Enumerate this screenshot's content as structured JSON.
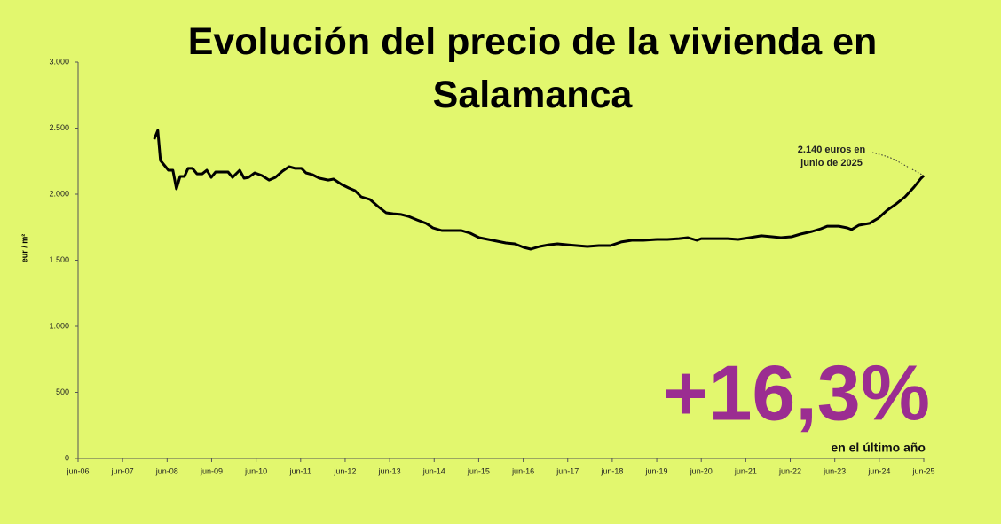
{
  "chart_data": {
    "type": "line",
    "title": "Evolución del precio de la vivienda en Salamanca",
    "y_label": "eur / m²",
    "annotation": [
      "2.140  euros en",
      "junio de 2025"
    ],
    "highlight": "+16,3%",
    "highlight_caption": "en el último año",
    "color": "#000000",
    "highlight_color": "#9b2d91",
    "background": "#e2f76e",
    "x": [
      2008.21,
      2008.29,
      2008.35,
      2008.53,
      2008.63,
      2008.71,
      2008.79,
      2008.89,
      2008.97,
      2009.07,
      2009.17,
      2009.29,
      2009.39,
      2009.49,
      2009.59,
      2009.87,
      2009.97,
      2010.13,
      2010.23,
      2010.33,
      2010.47,
      2010.63,
      2010.79,
      2010.93,
      2011.09,
      2011.24,
      2011.38,
      2011.52,
      2011.62,
      2011.76,
      2011.92,
      2012.12,
      2012.24,
      2012.42,
      2012.58,
      2012.72,
      2012.86,
      2013.06,
      2013.24,
      2013.42,
      2013.58,
      2013.76,
      2013.92,
      2014.12,
      2014.32,
      2014.47,
      2014.67,
      2014.91,
      2015.11,
      2015.31,
      2015.51,
      2015.71,
      2015.91,
      2016.11,
      2016.31,
      2016.51,
      2016.67,
      2016.87,
      2017.07,
      2017.27,
      2017.5,
      2017.7,
      2017.94,
      2018.2,
      2018.46,
      2018.7,
      2018.94,
      2019.2,
      2019.5,
      2019.74,
      2020.0,
      2020.2,
      2020.4,
      2020.5,
      2020.79,
      2021.09,
      2021.33,
      2021.59,
      2021.85,
      2022.09,
      2022.29,
      2022.53,
      2022.73,
      2022.99,
      2023.19,
      2023.33,
      2023.59,
      2023.78,
      2023.88,
      2024.04,
      2024.28,
      2024.48,
      2024.68,
      2024.88,
      2025.08,
      2025.28,
      2025.44,
      2025.5
    ],
    "values": [
      2416,
      2483,
      2255,
      2181,
      2181,
      2040,
      2134,
      2134,
      2195,
      2195,
      2154,
      2154,
      2181,
      2127,
      2168,
      2168,
      2127,
      2181,
      2121,
      2127,
      2161,
      2141,
      2107,
      2127,
      2174,
      2208,
      2195,
      2195,
      2161,
      2148,
      2121,
      2107,
      2114,
      2074,
      2047,
      2027,
      1980,
      1960,
      1906,
      1859,
      1852,
      1846,
      1832,
      1805,
      1779,
      1745,
      1725,
      1725,
      1725,
      1705,
      1671,
      1658,
      1644,
      1631,
      1624,
      1597,
      1584,
      1604,
      1617,
      1624,
      1617,
      1611,
      1604,
      1611,
      1611,
      1638,
      1651,
      1651,
      1658,
      1658,
      1664,
      1671,
      1651,
      1664,
      1664,
      1664,
      1658,
      1671,
      1685,
      1678,
      1671,
      1678,
      1698,
      1718,
      1738,
      1758,
      1758,
      1745,
      1732,
      1765,
      1779,
      1819,
      1879,
      1926,
      1980,
      2054,
      2121,
      2140
    ],
    "xlim": [
      2006.5,
      2025.5
    ],
    "xticks": [
      {
        "value": 2006.5,
        "label": "jun-06"
      },
      {
        "value": 2007.5,
        "label": "jun-07"
      },
      {
        "value": 2008.5,
        "label": "jun-08"
      },
      {
        "value": 2009.5,
        "label": "jun-09"
      },
      {
        "value": 2010.5,
        "label": "jun-10"
      },
      {
        "value": 2011.5,
        "label": "jun-11"
      },
      {
        "value": 2012.5,
        "label": "jun-12"
      },
      {
        "value": 2013.5,
        "label": "jun-13"
      },
      {
        "value": 2014.5,
        "label": "jun-14"
      },
      {
        "value": 2015.5,
        "label": "jun-15"
      },
      {
        "value": 2016.5,
        "label": "jun-16"
      },
      {
        "value": 2017.5,
        "label": "jun-17"
      },
      {
        "value": 2018.5,
        "label": "jun-18"
      },
      {
        "value": 2019.5,
        "label": "jun-19"
      },
      {
        "value": 2020.5,
        "label": "jun-20"
      },
      {
        "value": 2021.5,
        "label": "jun-21"
      },
      {
        "value": 2022.5,
        "label": "jun-22"
      },
      {
        "value": 2023.5,
        "label": "jun-23"
      },
      {
        "value": 2024.5,
        "label": "jun-24"
      },
      {
        "value": 2025.5,
        "label": "jun-25"
      }
    ],
    "ylim": [
      0,
      3000
    ],
    "yticks": [
      0,
      500,
      {
        "value": 1000,
        "label": "1.000"
      },
      {
        "value": 1500,
        "label": "1.500"
      },
      {
        "value": 2000,
        "label": "2.000"
      },
      {
        "value": 2500,
        "label": "2.500"
      },
      {
        "value": 3000,
        "label": "3.000"
      }
    ],
    "grid": false
  }
}
